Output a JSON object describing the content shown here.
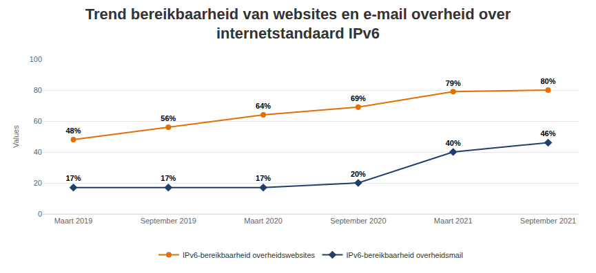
{
  "chart_data": {
    "type": "line",
    "title": "Trend bereikbaarheid van websites en e-mail overheid over internetstandaard IPv6",
    "y_label": "Values",
    "categories": [
      "Maart 2019",
      "September 2019",
      "Maart 2020",
      "September 2020",
      "Maart 2021",
      "September 2021"
    ],
    "series": [
      {
        "name": "IPv6-bereikbaarheid overheidswebsites",
        "color": "#e17000",
        "marker": "circle",
        "values": [
          48,
          56,
          64,
          69,
          79,
          80
        ],
        "value_labels": [
          "48%",
          "56%",
          "64%",
          "69%",
          "79%",
          "80%"
        ]
      },
      {
        "name": "IPv6-bereikbaarheid overheidsmail",
        "color": "#1f3f6b",
        "marker": "diamond",
        "values": [
          17,
          17,
          17,
          20,
          40,
          46
        ],
        "value_labels": [
          "17%",
          "17%",
          "17%",
          "20%",
          "40%",
          "46%"
        ]
      }
    ],
    "ylim": [
      0,
      100
    ],
    "yticks": [
      0,
      20,
      40,
      60,
      80,
      100
    ],
    "grid": true,
    "legend": "bottom",
    "data_labels": true
  }
}
